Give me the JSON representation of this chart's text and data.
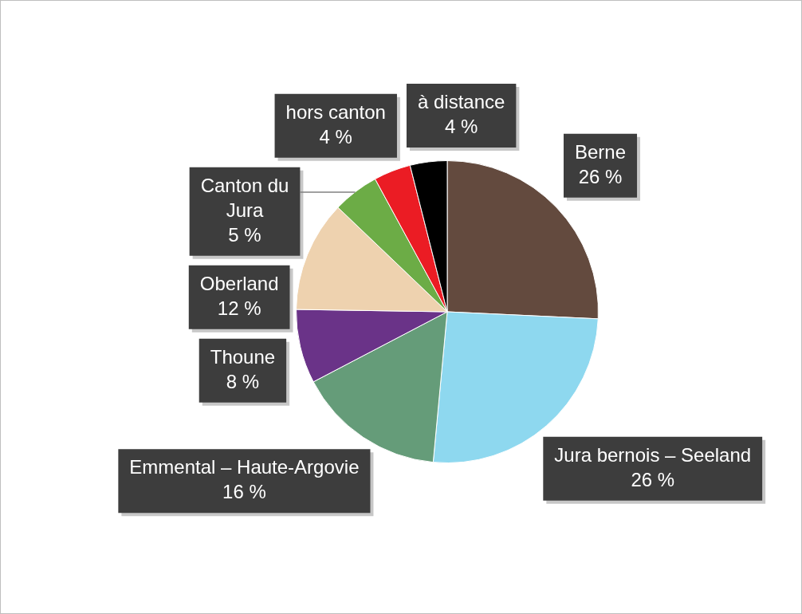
{
  "chart_data": {
    "type": "pie",
    "categories": [
      "Berne",
      "Jura bernois – Seeland",
      "Emmental – Haute-Argovie",
      "Thoune",
      "Oberland",
      "Canton du Jura",
      "hors canton",
      "à distance"
    ],
    "values": [
      26,
      26,
      16,
      8,
      12,
      5,
      4,
      4
    ],
    "colors": [
      "#634a3e",
      "#8ed8ef",
      "#659c79",
      "#6a3388",
      "#eed2af",
      "#6cac46",
      "#eb1c24",
      "#000000"
    ],
    "value_labels": [
      "26 %",
      "26 %",
      "16 %",
      "8 %",
      "12 %",
      "5 %",
      "4 %",
      "4 %"
    ]
  }
}
